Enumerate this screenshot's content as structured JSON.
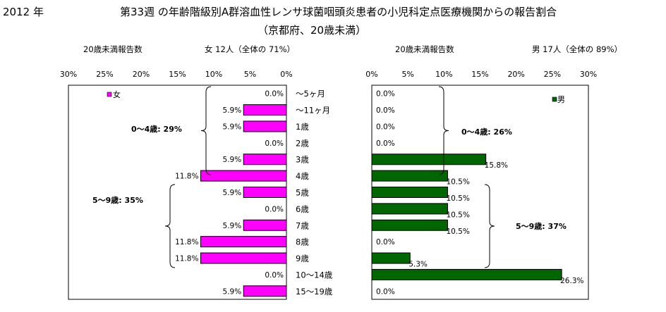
{
  "year": "2012 年",
  "title_line1": "第33週 の年齢階級別A群溶血性レンサ球菌咽頭炎患者の小児科定点医療機関からの報告割合",
  "title_line2": "（京都府、20歳未満）",
  "female_header": "20歳未満報告数",
  "female_info": "女 12人（全体の 71%）",
  "male_header": "20歳未満報告数",
  "male_info": "男 17人（全体の 89%）",
  "colors": {
    "female": "#ff00ff",
    "male": "#006600"
  },
  "chart_data": [
    {
      "type": "bar",
      "orientation": "horizontal-reversed",
      "categories": [
        "～5ヶ月",
        "～11ヶ月",
        "1歳",
        "2歳",
        "3歳",
        "4歳",
        "5歳",
        "6歳",
        "7歳",
        "8歳",
        "9歳",
        "10～14歳",
        "15～19歳"
      ],
      "series": [
        {
          "name": "女",
          "values": [
            0.0,
            5.9,
            5.9,
            0.0,
            5.9,
            11.8,
            5.9,
            0.0,
            5.9,
            11.8,
            11.8,
            0.0,
            5.9
          ]
        }
      ],
      "data_labels": [
        "0.0%",
        "5.9%",
        "5.9%",
        "0.0%",
        "5.9%",
        "11.8%",
        "5.9%",
        "0.0%",
        "5.9%",
        "11.8%",
        "11.8%",
        "0.0%",
        "5.9%"
      ],
      "xlim": [
        0,
        30
      ],
      "ticks": [
        "30%",
        "25%",
        "20%",
        "15%",
        "10%",
        "5%",
        "0%"
      ],
      "annotations": [
        "0～4歳: 29%",
        "5～9歳: 35%"
      ],
      "legend": "top-left"
    },
    {
      "type": "bar",
      "orientation": "horizontal",
      "categories": [
        "～5ヶ月",
        "～11ヶ月",
        "1歳",
        "2歳",
        "3歳",
        "4歳",
        "5歳",
        "6歳",
        "7歳",
        "8歳",
        "9歳",
        "10～14歳",
        "15～19歳"
      ],
      "series": [
        {
          "name": "男",
          "values": [
            0.0,
            0.0,
            0.0,
            0.0,
            15.8,
            10.5,
            10.5,
            10.5,
            10.5,
            0.0,
            5.3,
            26.3,
            0.0
          ]
        }
      ],
      "data_labels": [
        "0.0%",
        "0.0%",
        "0.0%",
        "0.0%",
        "15.8%",
        "10.5%",
        "10.5%",
        "10.5%",
        "10.5%",
        "0.0%",
        "5.3%",
        "26.3%",
        "0.0%"
      ],
      "xlim": [
        0,
        30
      ],
      "ticks": [
        "0%",
        "5%",
        "10%",
        "15%",
        "20%",
        "25%",
        "30%"
      ],
      "annotations": [
        "0～4歳: 26%",
        "5～9歳: 37%"
      ],
      "legend": "top-right"
    }
  ]
}
